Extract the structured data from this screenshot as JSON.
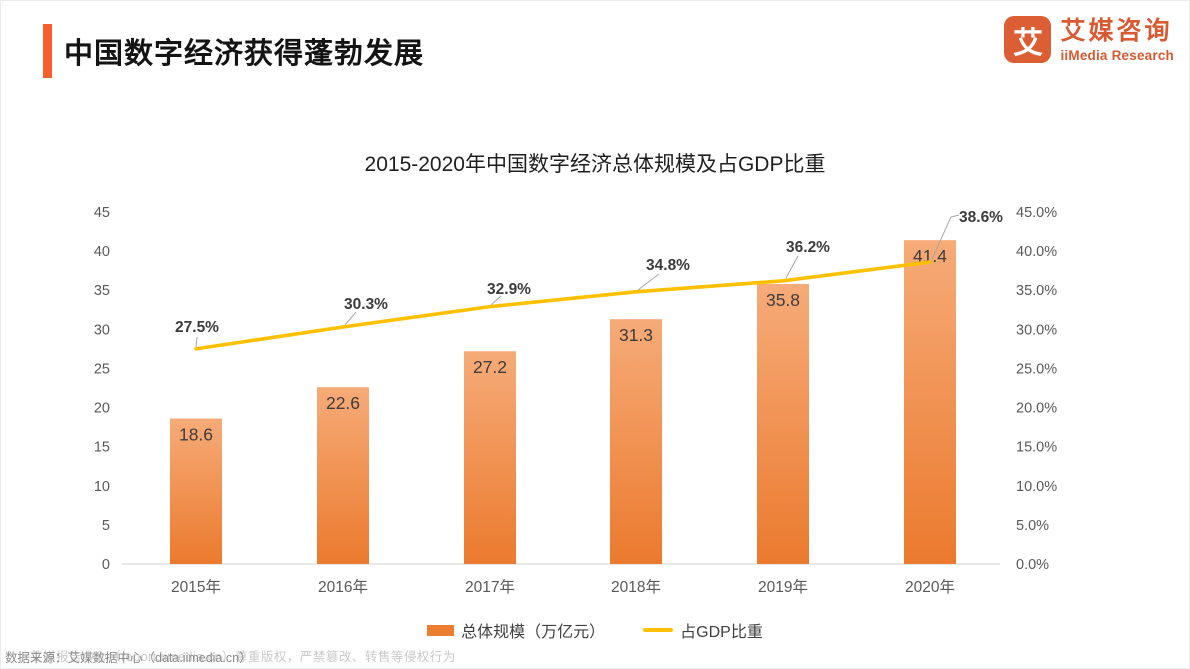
{
  "header": {
    "title": "中国数字经济获得蓬勃发展"
  },
  "logo": {
    "icon_char": "艾",
    "brand_cn": "艾媒咨询",
    "brand_en": "iiMedia Research"
  },
  "chart_data": {
    "type": "bar",
    "title": "2015-2020年中国数字经济总体规模及占GDP比重",
    "categories": [
      "2015年",
      "2016年",
      "2017年",
      "2018年",
      "2019年",
      "2020年"
    ],
    "series": [
      {
        "name": "总体规模（万亿元）",
        "type": "bar",
        "axis": "left",
        "values": [
          18.6,
          22.6,
          27.2,
          31.3,
          35.8,
          41.4
        ],
        "color_top": "#F6AB78",
        "color_bottom": "#EB7A2E"
      },
      {
        "name": "占GDP比重",
        "type": "line",
        "axis": "right",
        "values": [
          27.5,
          30.3,
          32.9,
          34.8,
          36.2,
          38.6
        ],
        "labels": [
          "27.5%",
          "30.3%",
          "32.9%",
          "34.8%",
          "36.2%",
          "38.6%"
        ],
        "color": "#FFC000"
      }
    ],
    "left_axis": {
      "min": 0,
      "max": 45,
      "ticks": [
        "0",
        "5",
        "10",
        "15",
        "20",
        "25",
        "30",
        "35",
        "40",
        "45"
      ]
    },
    "right_axis": {
      "min": 0,
      "max": 45,
      "ticks": [
        "0.0%",
        "5.0%",
        "10.0%",
        "15.0%",
        "20.0%",
        "25.0%",
        "30.0%",
        "35.0%",
        "40.0%",
        "45.0%"
      ]
    },
    "grid": "baseline-only",
    "legend_position": "bottom"
  },
  "legend": {
    "bar_label": "总体规模（万亿元）",
    "line_label": "占GDP比重"
  },
  "footer": {
    "source": "数据来源：艾媒数据中心（data.iimedia.cn）",
    "watermark": "艾媒报告中心（report.iimedia.cn）尊重版权，严禁篡改、转售等侵权行为"
  },
  "colors": {
    "accent": "#F85E2B",
    "brand": "#D75A32",
    "bar_top": "#F6AB78",
    "bar_bottom": "#EB7A2E",
    "line": "#FFC000",
    "axis_text": "#595959",
    "baseline": "#D9D9D9",
    "data_label": "#3C3C3C",
    "leader": "#A6A6A6"
  }
}
